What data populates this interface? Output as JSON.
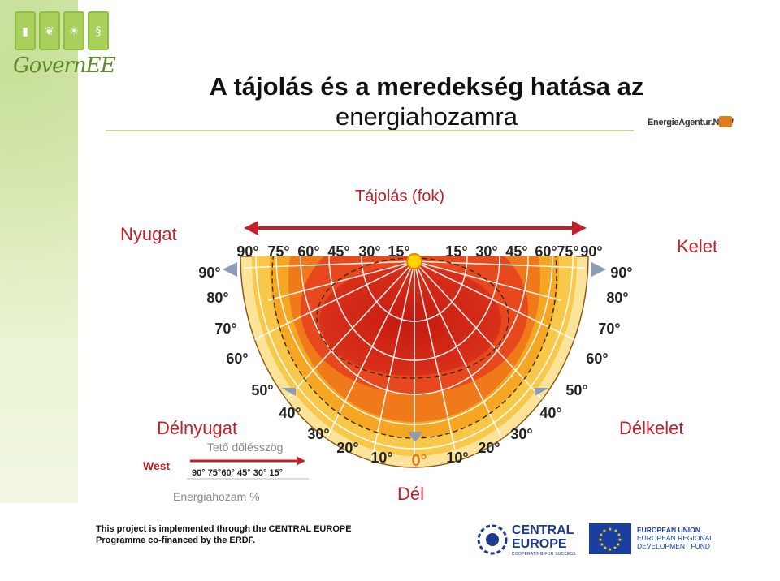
{
  "logo": {
    "name": "GovernEE",
    "boxes": [
      "▮",
      "❦",
      "☀",
      "§"
    ]
  },
  "title": {
    "line1": "A tájolás és a meredekség hatása az",
    "line2": "energiahozamra"
  },
  "agency": {
    "name": "EnergieAgentur.NRW"
  },
  "diagram": {
    "top_label": "Tájolás (fok)",
    "west_label": "Nyugat",
    "east_label": "Kelet",
    "southwest_label": "Délnyugat",
    "southeast_label": "Délkelet",
    "south_label": "Dél",
    "azimuth_ticks": [
      "90°",
      "75°",
      "60°",
      "45°",
      "30°",
      "15°",
      "15°",
      "30°",
      "45°",
      "60°",
      "75°",
      "90°"
    ],
    "tilt_left": [
      "90°",
      "80°",
      "70°",
      "60°",
      "50°",
      "40°",
      "30°",
      "20°",
      "10°"
    ],
    "tilt_right": [
      "90°",
      "80°",
      "70°",
      "60°",
      "50°",
      "40°",
      "30°",
      "20°",
      "10°"
    ],
    "tilt_zero": "0°",
    "legend": {
      "west": "West",
      "roof_tilt": "Tető dőlésszög",
      "mini_ticks": "90° 75°60° 45° 30° 15°",
      "energy": "Energiahozam %"
    },
    "colors": {
      "peak": "#c41a10",
      "high": "#e8481d",
      "mid_high": "#f07a1a",
      "mid": "#f5a623",
      "low": "#f8c84a",
      "lowest": "#fbe39a",
      "label_red": "#c0202a"
    }
  },
  "footer": {
    "line1": "This project is implemented through the CENTRAL EUROPE",
    "line2": "Programme co-financed by the ERDF.",
    "ce_line1": "CENTRAL",
    "ce_line2": "EUROPE",
    "ce_sub": "COOPERATING FOR SUCCESS.",
    "eu_line1": "EUROPEAN UNION",
    "eu_line2": "EUROPEAN REGIONAL",
    "eu_line3": "DEVELOPMENT FUND"
  }
}
